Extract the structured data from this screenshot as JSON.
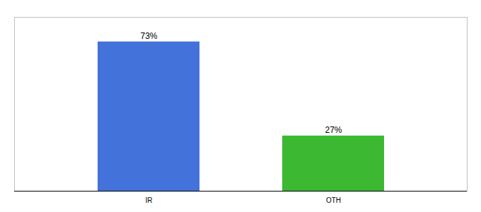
{
  "chart_data": {
    "type": "bar",
    "categories": [
      "IR",
      "OTH"
    ],
    "values": [
      73,
      27
    ],
    "colors": [
      "#4472DB",
      "#3CB832"
    ],
    "value_labels": [
      "73%",
      "27%"
    ],
    "data_labels": true,
    "ylim": [
      0,
      85
    ],
    "tick_labels": "x",
    "grid": false
  }
}
